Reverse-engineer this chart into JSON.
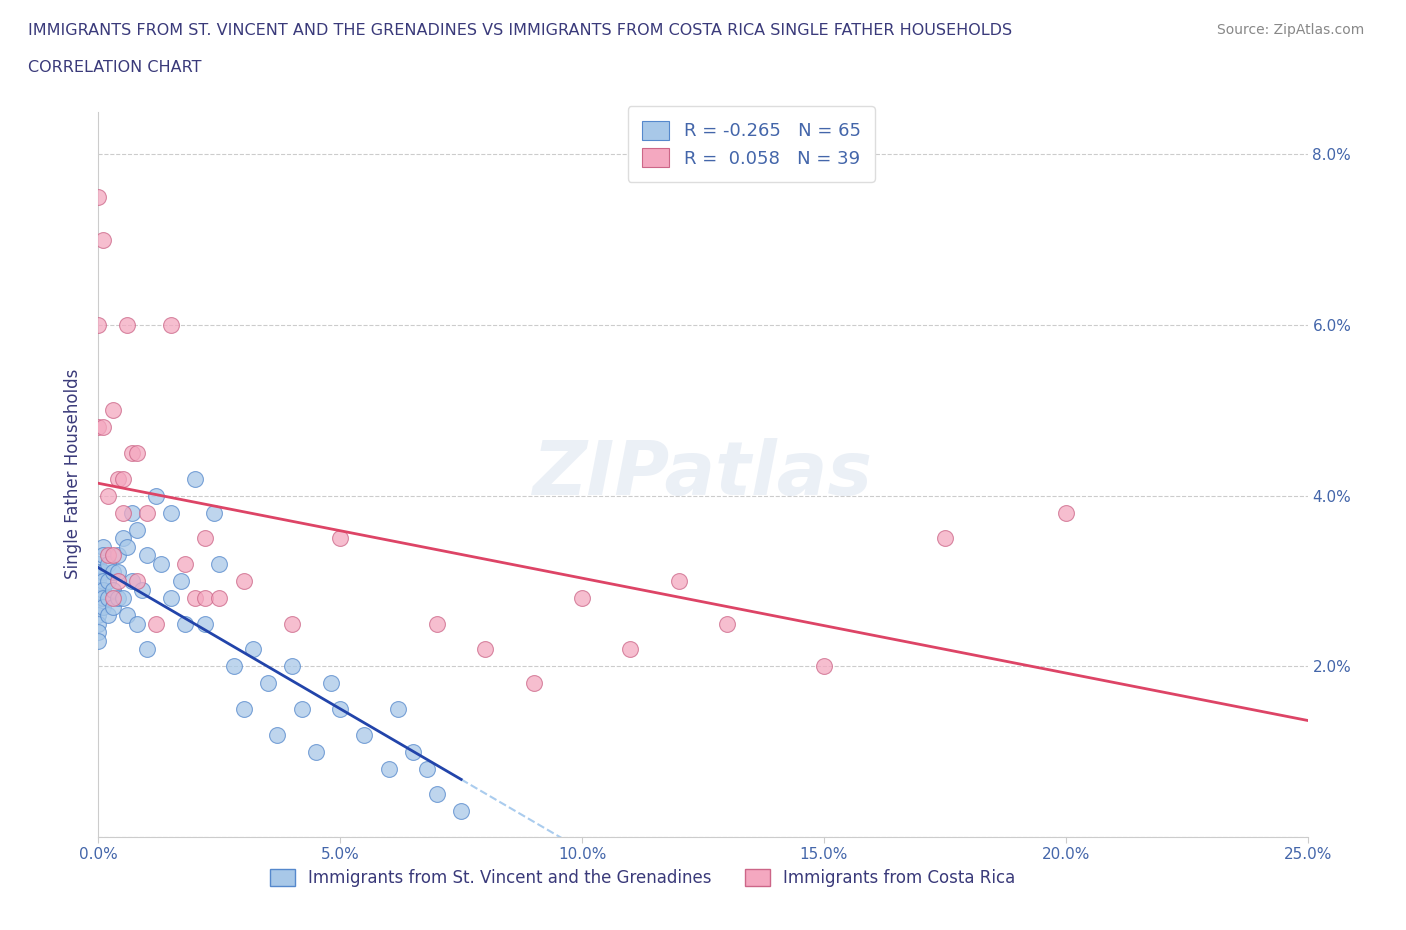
{
  "title_line1": "IMMIGRANTS FROM ST. VINCENT AND THE GRENADINES VS IMMIGRANTS FROM COSTA RICA SINGLE FATHER HOUSEHOLDS",
  "title_line2": "CORRELATION CHART",
  "source": "Source: ZipAtlas.com",
  "ylabel": "Single Father Households",
  "xlim": [
    0.0,
    0.25
  ],
  "ylim": [
    0.0,
    0.085
  ],
  "xticks": [
    0.0,
    0.05,
    0.1,
    0.15,
    0.2,
    0.25
  ],
  "xticklabels": [
    "0.0%",
    "5.0%",
    "10.0%",
    "15.0%",
    "20.0%",
    "25.0%"
  ],
  "yticks": [
    0.0,
    0.02,
    0.04,
    0.06,
    0.08
  ],
  "yticklabels": [
    "",
    "2.0%",
    "4.0%",
    "6.0%",
    "8.0%"
  ],
  "grid_color": "#cccccc",
  "background_color": "#ffffff",
  "series1_color": "#a8c8e8",
  "series2_color": "#f4a8c0",
  "series1_edge": "#5588cc",
  "series2_edge": "#cc6688",
  "series1_label": "Immigrants from St. Vincent and the Grenadines",
  "series2_label": "Immigrants from Costa Rica",
  "R1": -0.265,
  "N1": 65,
  "R2": 0.058,
  "N2": 39,
  "watermark": "ZIPatlas",
  "title_color": "#3a3a7a",
  "axis_color": "#4466aa",
  "legend_box_color1": "#a8c8e8",
  "legend_box_color2": "#f4a8c0",
  "line1_color": "#2244aa",
  "line2_color": "#dd4466",
  "dash_color": "#aaccee",
  "series1_x": [
    0.0,
    0.0,
    0.0,
    0.0,
    0.0,
    0.0,
    0.0,
    0.0,
    0.0,
    0.0,
    0.001,
    0.001,
    0.001,
    0.001,
    0.001,
    0.001,
    0.001,
    0.002,
    0.002,
    0.002,
    0.002,
    0.003,
    0.003,
    0.003,
    0.004,
    0.004,
    0.004,
    0.005,
    0.005,
    0.006,
    0.006,
    0.007,
    0.007,
    0.008,
    0.008,
    0.009,
    0.01,
    0.01,
    0.012,
    0.013,
    0.015,
    0.015,
    0.017,
    0.018,
    0.02,
    0.022,
    0.024,
    0.025,
    0.028,
    0.03,
    0.032,
    0.035,
    0.037,
    0.04,
    0.042,
    0.045,
    0.048,
    0.05,
    0.055,
    0.06,
    0.062,
    0.065,
    0.068,
    0.07,
    0.075
  ],
  "series1_y": [
    0.032,
    0.031,
    0.03,
    0.029,
    0.028,
    0.027,
    0.026,
    0.025,
    0.024,
    0.023,
    0.034,
    0.033,
    0.031,
    0.03,
    0.029,
    0.028,
    0.027,
    0.032,
    0.03,
    0.028,
    0.026,
    0.031,
    0.029,
    0.027,
    0.033,
    0.031,
    0.028,
    0.035,
    0.028,
    0.034,
    0.026,
    0.038,
    0.03,
    0.036,
    0.025,
    0.029,
    0.033,
    0.022,
    0.04,
    0.032,
    0.038,
    0.028,
    0.03,
    0.025,
    0.042,
    0.025,
    0.038,
    0.032,
    0.02,
    0.015,
    0.022,
    0.018,
    0.012,
    0.02,
    0.015,
    0.01,
    0.018,
    0.015,
    0.012,
    0.008,
    0.015,
    0.01,
    0.008,
    0.005,
    0.003
  ],
  "series2_x": [
    0.0,
    0.0,
    0.0,
    0.001,
    0.001,
    0.002,
    0.002,
    0.003,
    0.003,
    0.003,
    0.004,
    0.004,
    0.005,
    0.005,
    0.006,
    0.007,
    0.008,
    0.008,
    0.01,
    0.012,
    0.015,
    0.018,
    0.02,
    0.022,
    0.022,
    0.025,
    0.03,
    0.04,
    0.05,
    0.07,
    0.08,
    0.09,
    0.1,
    0.11,
    0.12,
    0.13,
    0.15,
    0.175,
    0.2
  ],
  "series2_y": [
    0.075,
    0.06,
    0.048,
    0.07,
    0.048,
    0.04,
    0.033,
    0.033,
    0.028,
    0.05,
    0.03,
    0.042,
    0.038,
    0.042,
    0.06,
    0.045,
    0.03,
    0.045,
    0.038,
    0.025,
    0.06,
    0.032,
    0.028,
    0.028,
    0.035,
    0.028,
    0.03,
    0.025,
    0.035,
    0.025,
    0.022,
    0.018,
    0.028,
    0.022,
    0.03,
    0.025,
    0.02,
    0.035,
    0.038
  ]
}
